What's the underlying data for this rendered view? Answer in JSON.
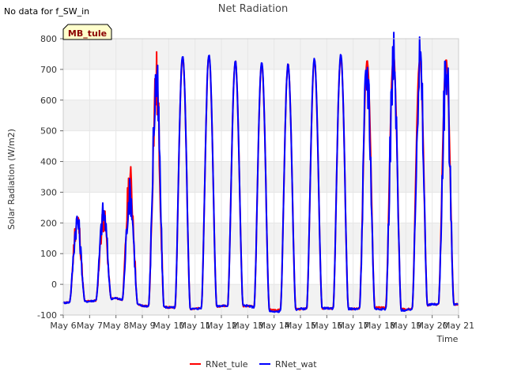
{
  "chart_data": {
    "type": "line",
    "title": "Net Radiation",
    "note": "No data for f_SW_in",
    "site_label": "MB_tule",
    "xlabel": "Time",
    "ylabel": "Solar Radiation (W/m2)",
    "ylim": [
      -100,
      800
    ],
    "yticks": [
      -100,
      0,
      100,
      200,
      300,
      400,
      500,
      600,
      700,
      800
    ],
    "xlim": [
      6,
      21
    ],
    "xticks": [
      6,
      7,
      8,
      9,
      10,
      11,
      12,
      13,
      14,
      15,
      16,
      17,
      18,
      19,
      20,
      21
    ],
    "xtick_labels": [
      "May 6",
      "May 7",
      "May 8",
      "May 9",
      "May 10",
      "May 11",
      "May 12",
      "May 13",
      "May 14",
      "May 15",
      "May 16",
      "May 17",
      "May 18",
      "May 19",
      "May 20",
      "May 21"
    ],
    "grid": true,
    "legend_position": "bottom-center",
    "series": [
      {
        "name": "RNet_tule",
        "color": "#ff0000",
        "daily": [
          {
            "day": 6.0,
            "night": -60,
            "peak": 210,
            "noisy": 1
          },
          {
            "day": 7.0,
            "night": -55,
            "peak": 215,
            "noisy": 1
          },
          {
            "day": 8.0,
            "night": -45,
            "peak": 335,
            "noisy": 1
          },
          {
            "day": 9.0,
            "night": -70,
            "peak": 650,
            "noisy": 1
          },
          {
            "day": 10.0,
            "night": -75,
            "peak": 740,
            "noisy": 0
          },
          {
            "day": 11.0,
            "night": -80,
            "peak": 745,
            "noisy": 0
          },
          {
            "day": 12.0,
            "night": -70,
            "peak": 725,
            "noisy": 0
          },
          {
            "day": 13.0,
            "night": -70,
            "peak": 715,
            "noisy": 0
          },
          {
            "day": 14.0,
            "night": -85,
            "peak": 715,
            "noisy": 0
          },
          {
            "day": 15.0,
            "night": -80,
            "peak": 730,
            "noisy": 0
          },
          {
            "day": 16.0,
            "night": -78,
            "peak": 740,
            "noisy": 0
          },
          {
            "day": 17.0,
            "night": -80,
            "peak": 725,
            "noisy": 0
          },
          {
            "day": 18.0,
            "night": -75,
            "peak": 745,
            "noisy": 0
          },
          {
            "day": 19.0,
            "night": -82,
            "peak": 735,
            "noisy": 0
          },
          {
            "day": 20.0,
            "night": -65,
            "peak": 730,
            "noisy": 0
          }
        ]
      },
      {
        "name": "RNet_wat",
        "color": "#0000ff",
        "daily": [
          {
            "day": 6.0,
            "night": -60,
            "peak": 205,
            "noisy": 1
          },
          {
            "day": 7.0,
            "night": -55,
            "peak": 230,
            "noisy": 1
          },
          {
            "day": 8.0,
            "night": -45,
            "peak": 290,
            "noisy": 1
          },
          {
            "day": 9.0,
            "night": -70,
            "peak": 650,
            "noisy": 1
          },
          {
            "day": 10.0,
            "night": -75,
            "peak": 745,
            "noisy": 0
          },
          {
            "day": 11.0,
            "night": -80,
            "peak": 750,
            "noisy": 0
          },
          {
            "day": 12.0,
            "night": -70,
            "peak": 725,
            "noisy": 0
          },
          {
            "day": 13.0,
            "night": -70,
            "peak": 720,
            "noisy": 0
          },
          {
            "day": 14.0,
            "night": -90,
            "peak": 715,
            "noisy": 0
          },
          {
            "day": 15.0,
            "night": -80,
            "peak": 735,
            "noisy": 0
          },
          {
            "day": 16.0,
            "night": -78,
            "peak": 745,
            "noisy": 0
          },
          {
            "day": 17.0,
            "night": -80,
            "peak": 690,
            "noisy": 1
          },
          {
            "day": 18.0,
            "night": -80,
            "peak": 705,
            "noisy": 1
          },
          {
            "day": 19.0,
            "night": -85,
            "peak": 710,
            "noisy": 1
          },
          {
            "day": 20.0,
            "night": -65,
            "peak": 700,
            "noisy": 1
          }
        ]
      }
    ]
  }
}
